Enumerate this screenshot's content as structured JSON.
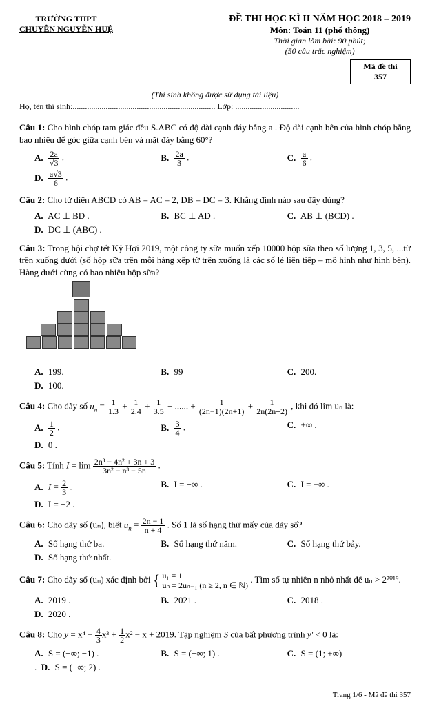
{
  "header": {
    "school_line1": "TRƯỜNG THPT",
    "school_line2": "CHUYÊN NGUYỄN HUỆ",
    "exam_title": "ĐỀ THI HỌC KÌ II NĂM HỌC 2018 – 2019",
    "subject": "Môn: Toán 11 (phổ thông)",
    "time": "Thời gian làm bài: 90 phút;",
    "count": "(50 câu trắc nghiệm)",
    "code_label": "Mã đề thi",
    "code_value": "357",
    "note": "(Thí sinh không được sử dụng tài liệu)",
    "name_prefix": "Họ, tên thí sinh:",
    "name_dots": ".....................................................................",
    "class_prefix": "Lớp:",
    "class_dots": "..............................."
  },
  "q1": {
    "label": "Câu 1:",
    "text": "Cho hình chóp tam giác đều S.ABC có độ dài cạnh đáy bằng a . Độ dài cạnh bên của hình chóp bằng bao nhiêu để góc giữa cạnh bên và mặt đáy bằng 60°?",
    "A_num": "2a",
    "A_den": "√3",
    "B_num": "2a",
    "B_den": "3",
    "C_num": "a",
    "C_den": "6",
    "D_num": "a√3",
    "D_den": "6"
  },
  "q2": {
    "label": "Câu 2:",
    "text": "Cho tứ diện ABCD có AB = AC = 2, DB = DC = 3. Khẳng định nào sau đây đúng?",
    "A": "AC ⊥ BD .",
    "B": "BC ⊥ AD .",
    "C": "AB ⊥ (BCD) .",
    "D": "DC ⊥ (ABC) ."
  },
  "q3": {
    "label": "Câu 3:",
    "text": "Trong hội chợ tết Kỷ Hợi 2019, một công ty sữa muốn xếp 10000 hộp sữa theo số lượng 1, 3, 5, ...từ trên xuống dưới (số hộp sữa trên mỗi hàng xếp từ trên xuống là các số lẻ liên tiếp – mô hình như hình bên). Hàng dưới cùng có bao nhiêu hộp sữa?",
    "A": "199.",
    "B": "99",
    "C": "200.",
    "D": "100."
  },
  "q4": {
    "label": "Câu 4:",
    "text_pre": "Cho dãy số ",
    "text_post": ", khi đó  lim uₙ  là:",
    "A_num": "1",
    "A_den": "2",
    "B_num": "3",
    "B_den": "4",
    "C": "+∞ .",
    "D": "0 ."
  },
  "q5": {
    "label": "Câu 5:",
    "text": "Tính ",
    "A": "I = 2/3 .",
    "B": "I = −∞ .",
    "C": "I = +∞ .",
    "D": "I = −2 ."
  },
  "q6": {
    "label": "Câu 6:",
    "text_pre": "Cho dãy số (uₙ), biết ",
    "text_post": ". Số 1 là số hạng thứ mấy của dãy số?",
    "A": "Số hạng thứ ba.",
    "B": "Số hạng thứ năm.",
    "C": "Số hạng thứ bảy.",
    "D": "Số hạng thứ nhất."
  },
  "q7": {
    "label": "Câu 7:",
    "text_pre": "Cho dãy số (uₙ) xác định bởi ",
    "text_post": ". Tìm số tự nhiên n nhỏ nhất để uₙ > 2²⁰¹⁹.",
    "sys1": "u₁ = 1",
    "sys2": "uₙ = 2uₙ₋₁  (n ≥ 2, n ∈ ℕ)",
    "A": "2019 .",
    "B": "2021 .",
    "C": "2018 .",
    "D": "2020 ."
  },
  "q8": {
    "label": "Câu 8:",
    "text": "Cho y = x⁴ − (4/3)x³ + (1/2)x² − x + 2019. Tập nghiệm S của bất phương trình y' < 0 là:",
    "A": "S = (−∞; −1) .",
    "B": "S = (−∞; 1) .",
    "C": "S = (1; +∞)",
    "D": "S = (−∞; 2) ."
  },
  "footer": "Trang 1/6 - Mã đề thi 357"
}
